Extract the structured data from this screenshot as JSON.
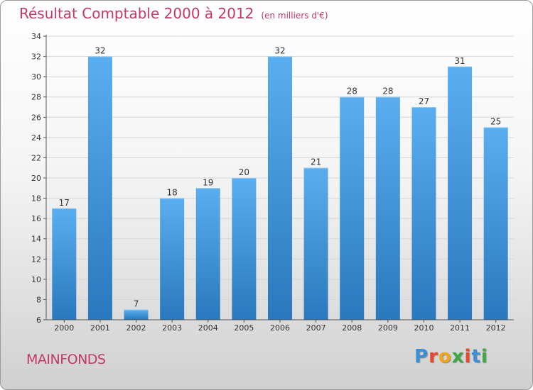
{
  "title": "Résultat Comptable 2000 à 2012",
  "subtitle": "(en milliers d'€)",
  "commune": "MAINFONDS",
  "brand": {
    "letters": [
      "P",
      "r",
      "o",
      "x",
      "i",
      "t",
      "i"
    ],
    "colors": [
      "#3b8fd6",
      "#e8492b",
      "#f2a51a",
      "#3ea843",
      "#e8492b",
      "#3b8fd6",
      "#3ea843"
    ]
  },
  "chart_data": {
    "type": "bar",
    "title": "Résultat Comptable 2000 à 2012",
    "ylabel": "(en milliers d'€)",
    "xlabel": "",
    "categories": [
      "2000",
      "2001",
      "2002",
      "2003",
      "2004",
      "2005",
      "2006",
      "2007",
      "2008",
      "2009",
      "2010",
      "2011",
      "2012"
    ],
    "values": [
      17,
      32,
      7,
      18,
      19,
      20,
      32,
      21,
      28,
      28,
      27,
      31,
      25
    ],
    "ylim": [
      6,
      34
    ],
    "yticks": [
      6,
      8,
      10,
      12,
      14,
      16,
      18,
      20,
      22,
      24,
      26,
      28,
      30,
      32,
      34
    ],
    "grid": true,
    "bar_color": "#3a8fd6"
  }
}
